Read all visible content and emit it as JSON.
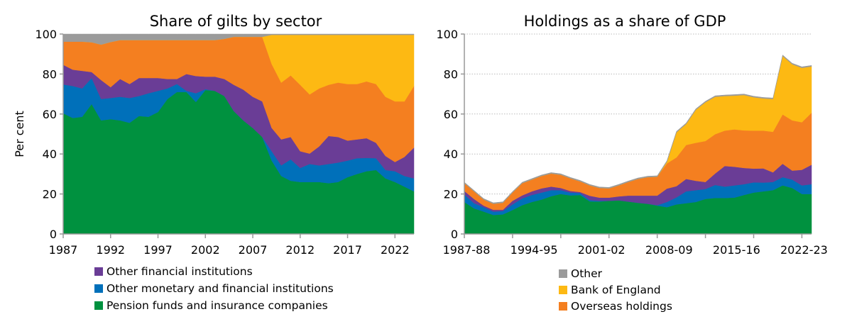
{
  "colors": {
    "pension": "#00913f",
    "omfi": "#0070ba",
    "ofi": "#6a3d96",
    "overseas": "#f47f20",
    "boe": "#fdb913",
    "other": "#9b9b9b"
  },
  "legend_left": [
    {
      "key": "ofi",
      "label": "Other financial institutions"
    },
    {
      "key": "omfi",
      "label": "Other monetary and financial institutions"
    },
    {
      "key": "pension",
      "label": "Pension funds and insurance companies"
    }
  ],
  "legend_right": [
    {
      "key": "other",
      "label": "Other"
    },
    {
      "key": "boe",
      "label": "Bank of England"
    },
    {
      "key": "overseas",
      "label": "Overseas holdings"
    }
  ],
  "chart_data": [
    {
      "type": "area",
      "stacked": true,
      "title": "Share of gilts by sector",
      "ylabel": "Per cent",
      "xlabel": "",
      "ylim": [
        0,
        100
      ],
      "yticks": [
        0,
        20,
        40,
        60,
        80,
        100
      ],
      "xlim": [
        1987,
        2024
      ],
      "xticks": [
        1987,
        1992,
        1997,
        2002,
        2007,
        2012,
        2017,
        2022
      ],
      "grid": false,
      "legend": "bottom",
      "x": [
        1987,
        1988,
        1989,
        1990,
        1991,
        1992,
        1993,
        1994,
        1995,
        1996,
        1997,
        1998,
        1999,
        2000,
        2001,
        2002,
        2003,
        2004,
        2005,
        2006,
        2007,
        2008,
        2009,
        2010,
        2011,
        2012,
        2013,
        2014,
        2015,
        2016,
        2017,
        2018,
        2019,
        2020,
        2021,
        2022,
        2023,
        2024
      ],
      "series": [
        {
          "key": "pension",
          "name": "Pension funds and insurance companies",
          "values": [
            60.4,
            58,
            58.6,
            65,
            56.8,
            57.4,
            56.8,
            55.6,
            59,
            58.6,
            61,
            67.5,
            71,
            71,
            66,
            72,
            71.6,
            69,
            61.5,
            56.8,
            53,
            48.5,
            36.7,
            29,
            26.6,
            26,
            26,
            26,
            25.4,
            26,
            28.4,
            30,
            31.4,
            32,
            27.8,
            26,
            23.7,
            21.3
          ]
        },
        {
          "key": "omfi",
          "name": "Other monetary and financial institutions",
          "values": [
            14.4,
            16,
            14.2,
            13,
            10.7,
            10.6,
            11.8,
            12.4,
            10,
            11.8,
            10.6,
            5.3,
            4,
            0.6,
            4.4,
            0.4,
            0,
            0,
            0,
            0,
            0,
            0,
            4.7,
            5.3,
            10.7,
            7,
            9,
            8.3,
            9.6,
            9.7,
            8.3,
            7.9,
            6.6,
            5.9,
            4.2,
            5.4,
            5.3,
            6.5
          ]
        },
        {
          "key": "ofi",
          "name": "Other financial institutions",
          "values": [
            9.8,
            8.2,
            8.8,
            3,
            9.5,
            5.4,
            8.9,
            7,
            9,
            7.6,
            6.4,
            4.7,
            2.5,
            8.4,
            8.6,
            6.3,
            7.1,
            8.5,
            13.1,
            15.4,
            15.6,
            17.8,
            11.6,
            13,
            11.2,
            8.4,
            5.2,
            9.5,
            14,
            12.8,
            10,
            9.4,
            9.9,
            7.7,
            7,
            4.6,
            9.5,
            15.4
          ]
        },
        {
          "key": "overseas",
          "name": "Overseas holdings",
          "values": [
            11.6,
            14,
            14.6,
            14.9,
            17.7,
            22.6,
            19.5,
            22,
            19,
            19,
            19,
            19.5,
            19.5,
            17,
            18,
            18.3,
            18.3,
            20.1,
            24,
            26.4,
            30,
            32.3,
            32,
            28.4,
            30.8,
            33.2,
            29.6,
            29,
            25.6,
            27.2,
            28.3,
            27.7,
            28.4,
            29.4,
            29.6,
            30.3,
            27.8,
            30.8
          ]
        },
        {
          "key": "boe",
          "name": "Bank of England",
          "values": [
            0,
            0,
            0,
            0,
            0,
            0,
            0,
            0,
            0,
            0,
            0,
            0,
            0,
            0,
            0,
            0,
            0,
            0,
            0,
            0,
            0,
            0,
            14.6,
            23.9,
            20.3,
            25,
            29.8,
            26.8,
            25,
            23.9,
            24.6,
            24.6,
            23.3,
            24.6,
            31,
            33.3,
            33.3,
            25.6
          ]
        },
        {
          "key": "other",
          "name": "Other",
          "values": [
            3.8,
            3.8,
            3.8,
            4.1,
            5.3,
            4,
            3,
            3,
            3,
            3,
            3,
            3,
            3,
            3,
            3,
            3,
            3,
            2.4,
            1.4,
            1.4,
            1.4,
            1.4,
            0.4,
            0.4,
            0.4,
            0.4,
            0.4,
            0.4,
            0.4,
            0.4,
            0.4,
            0.4,
            0.4,
            0.4,
            0.4,
            0.4,
            0.4,
            0.4
          ]
        }
      ]
    },
    {
      "type": "area",
      "stacked": true,
      "title": "Holdings as a share of GDP",
      "ylabel": "",
      "xlabel": "",
      "ylim": [
        0,
        100
      ],
      "yticks": [
        0,
        20,
        40,
        60,
        80,
        100
      ],
      "grid": true,
      "legend": "bottom",
      "categories": [
        "1987-88",
        "1988-89",
        "1989-90",
        "1990-91",
        "1991-92",
        "1992-93",
        "1993-94",
        "1994-95",
        "1995-96",
        "1996-97",
        "1997-98",
        "1998-99",
        "1999-00",
        "2000-01",
        "2001-02",
        "2002-03",
        "2003-04",
        "2004-05",
        "2005-06",
        "2006-07",
        "2007-08",
        "2008-09",
        "2009-10",
        "2010-11",
        "2011-12",
        "2012-13",
        "2013-14",
        "2014-15",
        "2015-16",
        "2016-17",
        "2017-18",
        "2018-19",
        "2019-20",
        "2020-21",
        "2021-22",
        "2022-23",
        "2023-24"
      ],
      "xtick_labels": [
        "1987-88",
        "1994-95",
        "2001-02",
        "2008-09",
        "2015-16",
        "2022-23"
      ],
      "series": [
        {
          "key": "pension",
          "name": "Pension funds and insurance companies",
          "values": [
            16,
            12.8,
            11.2,
            9.5,
            9.8,
            12,
            14.4,
            16,
            17.2,
            18.9,
            20,
            19.3,
            19.5,
            16.3,
            16.2,
            16.6,
            16.8,
            16.2,
            15.6,
            15.1,
            14.2,
            13.4,
            14.8,
            15.4,
            16,
            17.5,
            18,
            18,
            18.2,
            19.5,
            20.7,
            21.3,
            21.9,
            24.3,
            23,
            20,
            20
          ]
        },
        {
          "key": "omfi",
          "name": "Other monetary and financial institutions",
          "values": [
            3.8,
            2.6,
            2.2,
            1.7,
            1.7,
            2.8,
            3.4,
            3.5,
            3.5,
            3,
            1.9,
            1.4,
            1,
            0.6,
            0.4,
            0,
            0,
            0,
            0,
            0,
            0.2,
            2.6,
            3.5,
            5.9,
            5.9,
            5,
            6.5,
            5.7,
            6.1,
            5.4,
            5.1,
            4.4,
            4.1,
            4.1,
            4.2,
            4.3,
            4.9
          ]
        },
        {
          "key": "ofi",
          "name": "Other financial institutions",
          "values": [
            1.7,
            2.1,
            0.8,
            0.9,
            0.6,
            1.8,
            1.5,
            1.8,
            2.1,
            1.8,
            1.1,
            0.8,
            0.5,
            2.2,
            1.6,
            1.6,
            2,
            3,
            3.6,
            4.1,
            4.8,
            6.7,
            5.6,
            6.2,
            4.7,
            3.5,
            5.7,
            10.3,
            9.3,
            8.1,
            6.9,
            7.1,
            4.8,
            6.7,
            4.5,
            7.8,
            9.7
          ]
        },
        {
          "key": "overseas",
          "name": "Overseas holdings",
          "values": [
            3.9,
            3.8,
            3,
            3,
            3.5,
            4.1,
            6.1,
            5.9,
            6.2,
            6.5,
            6.6,
            6.3,
            5.3,
            5.2,
            4.8,
            4.6,
            5.5,
            6.8,
            8.3,
            9.2,
            9.4,
            12.6,
            14.4,
            17,
            19,
            20.5,
            19.7,
            17.7,
            18.7,
            18.8,
            19,
            18.9,
            20.3,
            24.7,
            25.1,
            23.8,
            26
          ]
        },
        {
          "key": "boe",
          "name": "Bank of England",
          "values": [
            0,
            0,
            0,
            0,
            0,
            0,
            0,
            0,
            0,
            0,
            0,
            0,
            0,
            0,
            0,
            0,
            0,
            0,
            0,
            0,
            0,
            0.8,
            12.5,
            10.5,
            16.5,
            19.4,
            18.7,
            17.3,
            16.9,
            17.7,
            16.7,
            16.1,
            16.4,
            29.2,
            28.1,
            27.2,
            23.2
          ]
        },
        {
          "key": "other",
          "name": "Other",
          "values": [
            0.5,
            0.5,
            0.5,
            0.5,
            0.5,
            0.5,
            0.5,
            0.5,
            0.5,
            0.5,
            0.5,
            0.5,
            0.5,
            0.5,
            0.5,
            0.5,
            0.5,
            0.5,
            0.5,
            0.5,
            0.5,
            0.5,
            0.5,
            0.5,
            0.5,
            0.5,
            0.5,
            0.5,
            0.5,
            0.5,
            0.5,
            0.5,
            0.5,
            0.5,
            0.5,
            0.5,
            0.5
          ]
        }
      ]
    }
  ]
}
